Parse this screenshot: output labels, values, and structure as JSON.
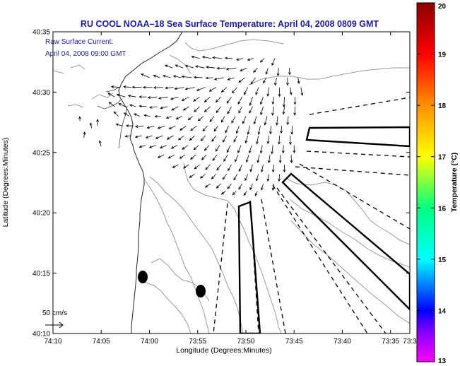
{
  "chart_data": {
    "type": "vector-field-map",
    "title": "RU COOL  NOAA–18  Sea Surface Temperature:  April 04, 2008 0809 GMT",
    "annotation_lines": [
      "Raw Surface Current:",
      "April 04, 2008 09:00 GMT"
    ],
    "xlabel": "Longitude (Degrees:Minutes)",
    "ylabel": "Latitude (Degrees:Minutes)",
    "xlim_minutes_west": [
      610,
      573
    ],
    "ylim_minutes_north": [
      2410,
      2435
    ],
    "x_ticks": [
      {
        "value": 610,
        "label": "74:10"
      },
      {
        "value": 605,
        "label": "74:05"
      },
      {
        "value": 600,
        "label": "74:00"
      },
      {
        "value": 595,
        "label": "73:55"
      },
      {
        "value": 590,
        "label": "73:50"
      },
      {
        "value": 585,
        "label": "73:45"
      },
      {
        "value": 580,
        "label": "73:40"
      },
      {
        "value": 575,
        "label": "73:35"
      },
      {
        "value": 573,
        "label": "73:3"
      }
    ],
    "y_ticks": [
      {
        "value": 2410,
        "label": "40:10"
      },
      {
        "value": 2415,
        "label": "40:15"
      },
      {
        "value": 2420,
        "label": "40:20"
      },
      {
        "value": 2425,
        "label": "40:25"
      },
      {
        "value": 2430,
        "label": "40:30"
      },
      {
        "value": 2435,
        "label": "40:35"
      }
    ],
    "scale_arrow": {
      "label": "50 cm/s",
      "speed_cm_s": 50
    },
    "colorbar": {
      "label": "Temperature (°C)",
      "min": 13,
      "max": 20,
      "ticks": [
        {
          "value": 13,
          "label": "13"
        },
        {
          "value": 14,
          "label": "14"
        },
        {
          "value": 15,
          "label": "15"
        },
        {
          "value": 16,
          "label": "16"
        },
        {
          "value": 17,
          "label": "17"
        },
        {
          "value": 18,
          "label": "18"
        },
        {
          "value": 19,
          "label": "19"
        },
        {
          "value": 20,
          "label": "20"
        }
      ],
      "stops": [
        {
          "value": 13,
          "color": "#ff00ff"
        },
        {
          "value": 13.6,
          "color": "#8000ff"
        },
        {
          "value": 14,
          "color": "#0000ff"
        },
        {
          "value": 15,
          "color": "#00ffff"
        },
        {
          "value": 16,
          "color": "#00ff80"
        },
        {
          "value": 17,
          "color": "#ffff00"
        },
        {
          "value": 18,
          "color": "#ff9000"
        },
        {
          "value": 19,
          "color": "#ff0000"
        },
        {
          "value": 20,
          "color": "#8b0000"
        }
      ]
    },
    "current_vectors": [
      [
        594.8,
        2432.8,
        -11.1,
        2.7
      ],
      [
        593.6,
        2432.8,
        -12.1,
        2.2
      ],
      [
        592.5,
        2432.8,
        -12.9,
        1.2
      ],
      [
        591.4,
        2432.8,
        -10.2,
        0.5
      ],
      [
        590.3,
        2432.8,
        -9.1,
        -2.2
      ],
      [
        589.2,
        2432.8,
        -8.5,
        -2.4
      ],
      [
        588.1,
        2432.8,
        -5.5,
        -5.5
      ],
      [
        587.0,
        2432.8,
        -3.9,
        -9.8
      ],
      [
        597.6,
        2432.0,
        -10.3,
        3.9
      ],
      [
        596.5,
        2432.0,
        -11.0,
        4.0
      ],
      [
        595.4,
        2432.0,
        -11.7,
        3.3
      ],
      [
        594.3,
        2432.0,
        -12.5,
        2.6
      ],
      [
        593.2,
        2432.0,
        -12.3,
        1.5
      ],
      [
        592.1,
        2432.0,
        -12.2,
        -0.5
      ],
      [
        591.0,
        2432.0,
        -13.7,
        -1.8
      ],
      [
        589.9,
        2432.0,
        -9.4,
        -4.1
      ],
      [
        588.8,
        2432.0,
        -5.6,
        -6.2
      ],
      [
        587.7,
        2432.0,
        -2.9,
        -8.7
      ],
      [
        586.6,
        2432.0,
        -1.0,
        -10.9
      ],
      [
        585.5,
        2432.0,
        0.7,
        -9.4
      ],
      [
        600.0,
        2431.2,
        -11.6,
        5.3
      ],
      [
        598.9,
        2431.2,
        -9.2,
        3.2
      ],
      [
        597.8,
        2431.2,
        -10.6,
        2.8
      ],
      [
        596.7,
        2431.2,
        -11.0,
        2.4
      ],
      [
        595.6,
        2431.2,
        -14.1,
        1.6
      ],
      [
        594.5,
        2431.2,
        -11.9,
        0.6
      ],
      [
        593.4,
        2431.2,
        -10.1,
        -0.7
      ],
      [
        592.3,
        2431.2,
        -12.9,
        -2.6
      ],
      [
        591.2,
        2431.2,
        -9.3,
        -2.9
      ],
      [
        590.1,
        2431.2,
        -8.6,
        -6.6
      ],
      [
        589.0,
        2431.2,
        -6.5,
        -9.3
      ],
      [
        587.9,
        2431.2,
        -3.9,
        -7.6
      ],
      [
        586.8,
        2431.2,
        -2.3,
        -10.7
      ],
      [
        585.7,
        2431.2,
        0.4,
        -10.7
      ],
      [
        584.6,
        2431.2,
        1.4,
        -8.1
      ],
      [
        603.0,
        2430.4,
        -12.8,
        0.9
      ],
      [
        601.9,
        2430.4,
        -10.6,
        0.9
      ],
      [
        600.8,
        2430.4,
        -13.4,
        0.3
      ],
      [
        599.7,
        2430.4,
        -12.9,
        -0.2
      ],
      [
        598.6,
        2430.4,
        -12.8,
        -0.5
      ],
      [
        597.5,
        2430.4,
        -11.5,
        -1.2
      ],
      [
        596.4,
        2430.4,
        -13.3,
        -2.3
      ],
      [
        595.3,
        2430.4,
        -13.2,
        -2.7
      ],
      [
        594.2,
        2430.4,
        -12.0,
        -4.4
      ],
      [
        593.1,
        2430.4,
        -9.3,
        -5.6
      ],
      [
        592.0,
        2430.4,
        -7.2,
        -6.7
      ],
      [
        590.9,
        2430.4,
        -7.1,
        -7.9
      ],
      [
        589.8,
        2430.4,
        -5.3,
        -10.3
      ],
      [
        588.7,
        2430.4,
        -3.5,
        -10.4
      ],
      [
        587.6,
        2430.4,
        -1.9,
        -12.5
      ],
      [
        586.5,
        2430.4,
        -0.3,
        -12.9
      ],
      [
        585.4,
        2430.4,
        1.4,
        -10.3
      ],
      [
        584.3,
        2430.4,
        2.1,
        -11.3
      ],
      [
        603.6,
        2429.6,
        -9.4,
        5.2
      ],
      [
        602.5,
        2429.6,
        -11.9,
        3.5
      ],
      [
        601.4,
        2429.6,
        -10.8,
        1.9
      ],
      [
        600.3,
        2429.6,
        -10.1,
        0.2
      ],
      [
        599.2,
        2429.6,
        -12.9,
        -1.1
      ],
      [
        598.1,
        2429.6,
        -12.6,
        -2.2
      ],
      [
        597.0,
        2429.6,
        -10.6,
        -3.2
      ],
      [
        595.9,
        2429.6,
        -9.9,
        -5.3
      ],
      [
        594.8,
        2429.6,
        -8.5,
        -6.0
      ],
      [
        593.7,
        2429.6,
        -8.1,
        -7.1
      ],
      [
        592.6,
        2429.6,
        -7.0,
        -7.3
      ],
      [
        591.5,
        2429.6,
        -6.3,
        -8.8
      ],
      [
        590.4,
        2429.6,
        -5.4,
        -10.0
      ],
      [
        589.3,
        2429.6,
        -4.0,
        -12.0
      ],
      [
        588.2,
        2429.6,
        -3.7,
        -10.3
      ],
      [
        587.1,
        2429.6,
        -1.6,
        -10.0
      ],
      [
        586.0,
        2429.6,
        -0.9,
        -13.9
      ],
      [
        584.9,
        2429.6,
        -0.2,
        -10.5
      ],
      [
        603.6,
        2428.8,
        -8.0,
        6.2
      ],
      [
        602.5,
        2428.8,
        -9.3,
        4.3
      ],
      [
        601.4,
        2428.8,
        -8.7,
        2.4
      ],
      [
        600.3,
        2428.8,
        -10.2,
        0.8
      ],
      [
        599.2,
        2428.8,
        -10.4,
        -1.5
      ],
      [
        598.1,
        2428.8,
        -10.3,
        -2.4
      ],
      [
        597.0,
        2428.8,
        -9.4,
        -5.0
      ],
      [
        595.9,
        2428.8,
        -7.9,
        -5.1
      ],
      [
        594.8,
        2428.8,
        -7.5,
        -7.1
      ],
      [
        593.7,
        2428.8,
        -8.0,
        -7.2
      ],
      [
        592.6,
        2428.8,
        -6.2,
        -8.5
      ],
      [
        591.5,
        2428.8,
        -5.5,
        -10.1
      ],
      [
        590.4,
        2428.8,
        -4.6,
        -9.1
      ],
      [
        589.3,
        2428.8,
        -4.7,
        -9.1
      ],
      [
        588.2,
        2428.8,
        -3.4,
        -11.4
      ],
      [
        587.1,
        2428.8,
        -2.0,
        -12.2
      ],
      [
        586.0,
        2428.8,
        -1.6,
        -10.7
      ],
      [
        584.9,
        2428.8,
        -0.6,
        -12.0
      ],
      [
        603.2,
        2428.0,
        -6.6,
        6.5
      ],
      [
        602.1,
        2428.0,
        -7.1,
        4.7
      ],
      [
        601.0,
        2428.0,
        -7.9,
        3.5
      ],
      [
        599.9,
        2428.0,
        -8.8,
        1.6
      ],
      [
        598.8,
        2428.0,
        -8.6,
        -0.3
      ],
      [
        597.7,
        2428.0,
        -7.4,
        -2.6
      ],
      [
        596.6,
        2428.0,
        -8.6,
        -3.8
      ],
      [
        595.5,
        2428.0,
        -6.5,
        -5.0
      ],
      [
        594.4,
        2428.0,
        -7.4,
        -6.3
      ],
      [
        593.3,
        2428.0,
        -5.8,
        -7.7
      ],
      [
        592.2,
        2428.0,
        -4.6,
        -8.4
      ],
      [
        591.1,
        2428.0,
        -5.1,
        -9.5
      ],
      [
        590.0,
        2428.0,
        -4.5,
        -10.2
      ],
      [
        588.9,
        2428.0,
        -3.4,
        -10.9
      ],
      [
        587.8,
        2428.0,
        -3.4,
        -12.3
      ],
      [
        586.7,
        2428.0,
        -1.3,
        -12.4
      ],
      [
        585.6,
        2428.0,
        -1.0,
        -11.8
      ],
      [
        602.8,
        2427.2,
        -9.0,
        2.6
      ],
      [
        601.7,
        2427.2,
        -9.5,
        0.3
      ],
      [
        600.6,
        2427.2,
        -11.5,
        -1.2
      ],
      [
        599.5,
        2427.2,
        -10.0,
        -2.9
      ],
      [
        598.4,
        2427.2,
        -9.8,
        -3.5
      ],
      [
        597.3,
        2427.2,
        -9.0,
        -4.3
      ],
      [
        596.2,
        2427.2,
        -8.5,
        -6.1
      ],
      [
        595.1,
        2427.2,
        -8.3,
        -6.4
      ],
      [
        594.0,
        2427.2,
        -6.2,
        -7.2
      ],
      [
        592.9,
        2427.2,
        -5.2,
        -7.4
      ],
      [
        591.8,
        2427.2,
        -4.3,
        -9.7
      ],
      [
        590.7,
        2427.2,
        -3.7,
        -10.3
      ],
      [
        589.6,
        2427.2,
        -2.6,
        -11.9
      ],
      [
        588.5,
        2427.2,
        -2.5,
        -11.9
      ],
      [
        587.4,
        2427.2,
        -0.7,
        -11.3
      ],
      [
        586.3,
        2427.2,
        -0.5,
        -10.1
      ],
      [
        585.2,
        2427.2,
        -0.4,
        -11.8
      ],
      [
        601.9,
        2426.4,
        -8.4,
        -1.4
      ],
      [
        600.8,
        2426.4,
        -8.9,
        -2.4
      ],
      [
        599.7,
        2426.4,
        -9.0,
        -3.1
      ],
      [
        598.6,
        2426.4,
        -10.2,
        -4.2
      ],
      [
        597.5,
        2426.4,
        -9.1,
        -5.2
      ],
      [
        596.4,
        2426.4,
        -8.1,
        -6.1
      ],
      [
        595.3,
        2426.4,
        -7.2,
        -6.7
      ],
      [
        594.2,
        2426.4,
        -6.2,
        -7.4
      ],
      [
        593.1,
        2426.4,
        -5.8,
        -8.3
      ],
      [
        592.0,
        2426.4,
        -5.2,
        -9.1
      ],
      [
        590.9,
        2426.4,
        -4.6,
        -9.0
      ],
      [
        589.8,
        2426.4,
        -3.2,
        -10.4
      ],
      [
        588.7,
        2426.4,
        -2.2,
        -11.8
      ],
      [
        587.6,
        2426.4,
        -1.6,
        -11.4
      ],
      [
        586.5,
        2426.4,
        -0.9,
        -12.1
      ],
      [
        585.4,
        2426.4,
        0.2,
        -12.6
      ],
      [
        600.4,
        2425.6,
        -8.7,
        -2.7
      ],
      [
        599.3,
        2425.6,
        -9.4,
        -3.2
      ],
      [
        598.2,
        2425.6,
        -9.5,
        -3.9
      ],
      [
        597.1,
        2425.6,
        -8.5,
        -4.3
      ],
      [
        596.0,
        2425.6,
        -8.1,
        -5.7
      ],
      [
        594.9,
        2425.6,
        -6.7,
        -6.2
      ],
      [
        593.8,
        2425.6,
        -6.6,
        -7.3
      ],
      [
        592.7,
        2425.6,
        -5.8,
        -8.4
      ],
      [
        591.6,
        2425.6,
        -4.8,
        -10.0
      ],
      [
        590.5,
        2425.6,
        -4.3,
        -10.6
      ],
      [
        589.4,
        2425.6,
        -3.3,
        -10.9
      ],
      [
        588.3,
        2425.6,
        -2.0,
        -11.1
      ],
      [
        587.2,
        2425.6,
        -1.4,
        -12.1
      ],
      [
        586.1,
        2425.6,
        -0.5,
        -10.9
      ],
      [
        585.0,
        2425.6,
        0.2,
        -10.6
      ],
      [
        598.5,
        2424.8,
        -8.5,
        -3.9
      ],
      [
        597.4,
        2424.8,
        -8.8,
        -4.6
      ],
      [
        596.3,
        2424.8,
        -7.6,
        -5.0
      ],
      [
        595.2,
        2424.8,
        -7.3,
        -6.2
      ],
      [
        594.1,
        2424.8,
        -6.4,
        -6.9
      ],
      [
        593.0,
        2424.8,
        -5.9,
        -8.0
      ],
      [
        591.9,
        2424.8,
        -5.2,
        -9.0
      ],
      [
        590.8,
        2424.8,
        -4.4,
        -9.6
      ],
      [
        589.7,
        2424.8,
        -3.3,
        -10.2
      ],
      [
        588.6,
        2424.8,
        -2.4,
        -10.8
      ],
      [
        587.5,
        2424.8,
        -1.6,
        -11.2
      ],
      [
        586.4,
        2424.8,
        -0.6,
        -11.0
      ],
      [
        585.3,
        2424.8,
        0.4,
        -10.9
      ],
      [
        597.0,
        2424.0,
        -8.0,
        -4.4
      ],
      [
        595.9,
        2424.0,
        -7.6,
        -5.1
      ],
      [
        594.8,
        2424.0,
        -7.1,
        -6.0
      ],
      [
        593.7,
        2424.0,
        -6.5,
        -7.0
      ],
      [
        592.6,
        2424.0,
        -5.5,
        -7.9
      ],
      [
        591.5,
        2424.0,
        -4.8,
        -8.7
      ],
      [
        590.4,
        2424.0,
        -4.0,
        -9.4
      ],
      [
        589.3,
        2424.0,
        -3.1,
        -9.9
      ],
      [
        588.2,
        2424.0,
        -2.2,
        -10.4
      ],
      [
        587.1,
        2424.0,
        -1.1,
        -10.6
      ],
      [
        586.0,
        2424.0,
        -0.2,
        -10.4
      ],
      [
        595.3,
        2423.2,
        -7.5,
        -4.7
      ],
      [
        594.2,
        2423.2,
        -7.0,
        -5.6
      ],
      [
        593.1,
        2423.2,
        -6.3,
        -6.6
      ],
      [
        592.0,
        2423.2,
        -5.5,
        -7.4
      ],
      [
        590.9,
        2423.2,
        -4.7,
        -8.3
      ],
      [
        589.8,
        2423.2,
        -3.8,
        -8.9
      ],
      [
        588.7,
        2423.2,
        -2.8,
        -9.4
      ],
      [
        587.6,
        2423.2,
        -1.8,
        -9.8
      ],
      [
        586.5,
        2423.2,
        -0.8,
        -9.8
      ],
      [
        593.7,
        2422.4,
        -6.9,
        -4.9
      ],
      [
        592.6,
        2422.4,
        -6.1,
        -5.9
      ],
      [
        591.5,
        2422.4,
        -5.4,
        -6.9
      ],
      [
        590.4,
        2422.4,
        -4.5,
        -7.6
      ],
      [
        589.3,
        2422.4,
        -3.5,
        -8.3
      ],
      [
        588.2,
        2422.4,
        -2.5,
        -8.7
      ],
      [
        587.1,
        2422.4,
        -1.5,
        -8.9
      ],
      [
        592.1,
        2421.8,
        -5.8,
        -4.5
      ],
      [
        591.0,
        2421.8,
        -5.0,
        -5.2
      ],
      [
        589.9,
        2421.8,
        -4.1,
        -5.9
      ],
      [
        588.8,
        2421.8,
        -3.1,
        -6.4
      ],
      [
        606.0,
        2427.0,
        -1.5,
        7.6
      ],
      [
        605.4,
        2427.2,
        0.4,
        9.2
      ],
      [
        606.8,
        2426.2,
        1.1,
        8.5
      ],
      [
        607.2,
        2427.6,
        -0.4,
        6.3
      ],
      [
        605.0,
        2425.5,
        -2.2,
        8.1
      ]
    ]
  }
}
